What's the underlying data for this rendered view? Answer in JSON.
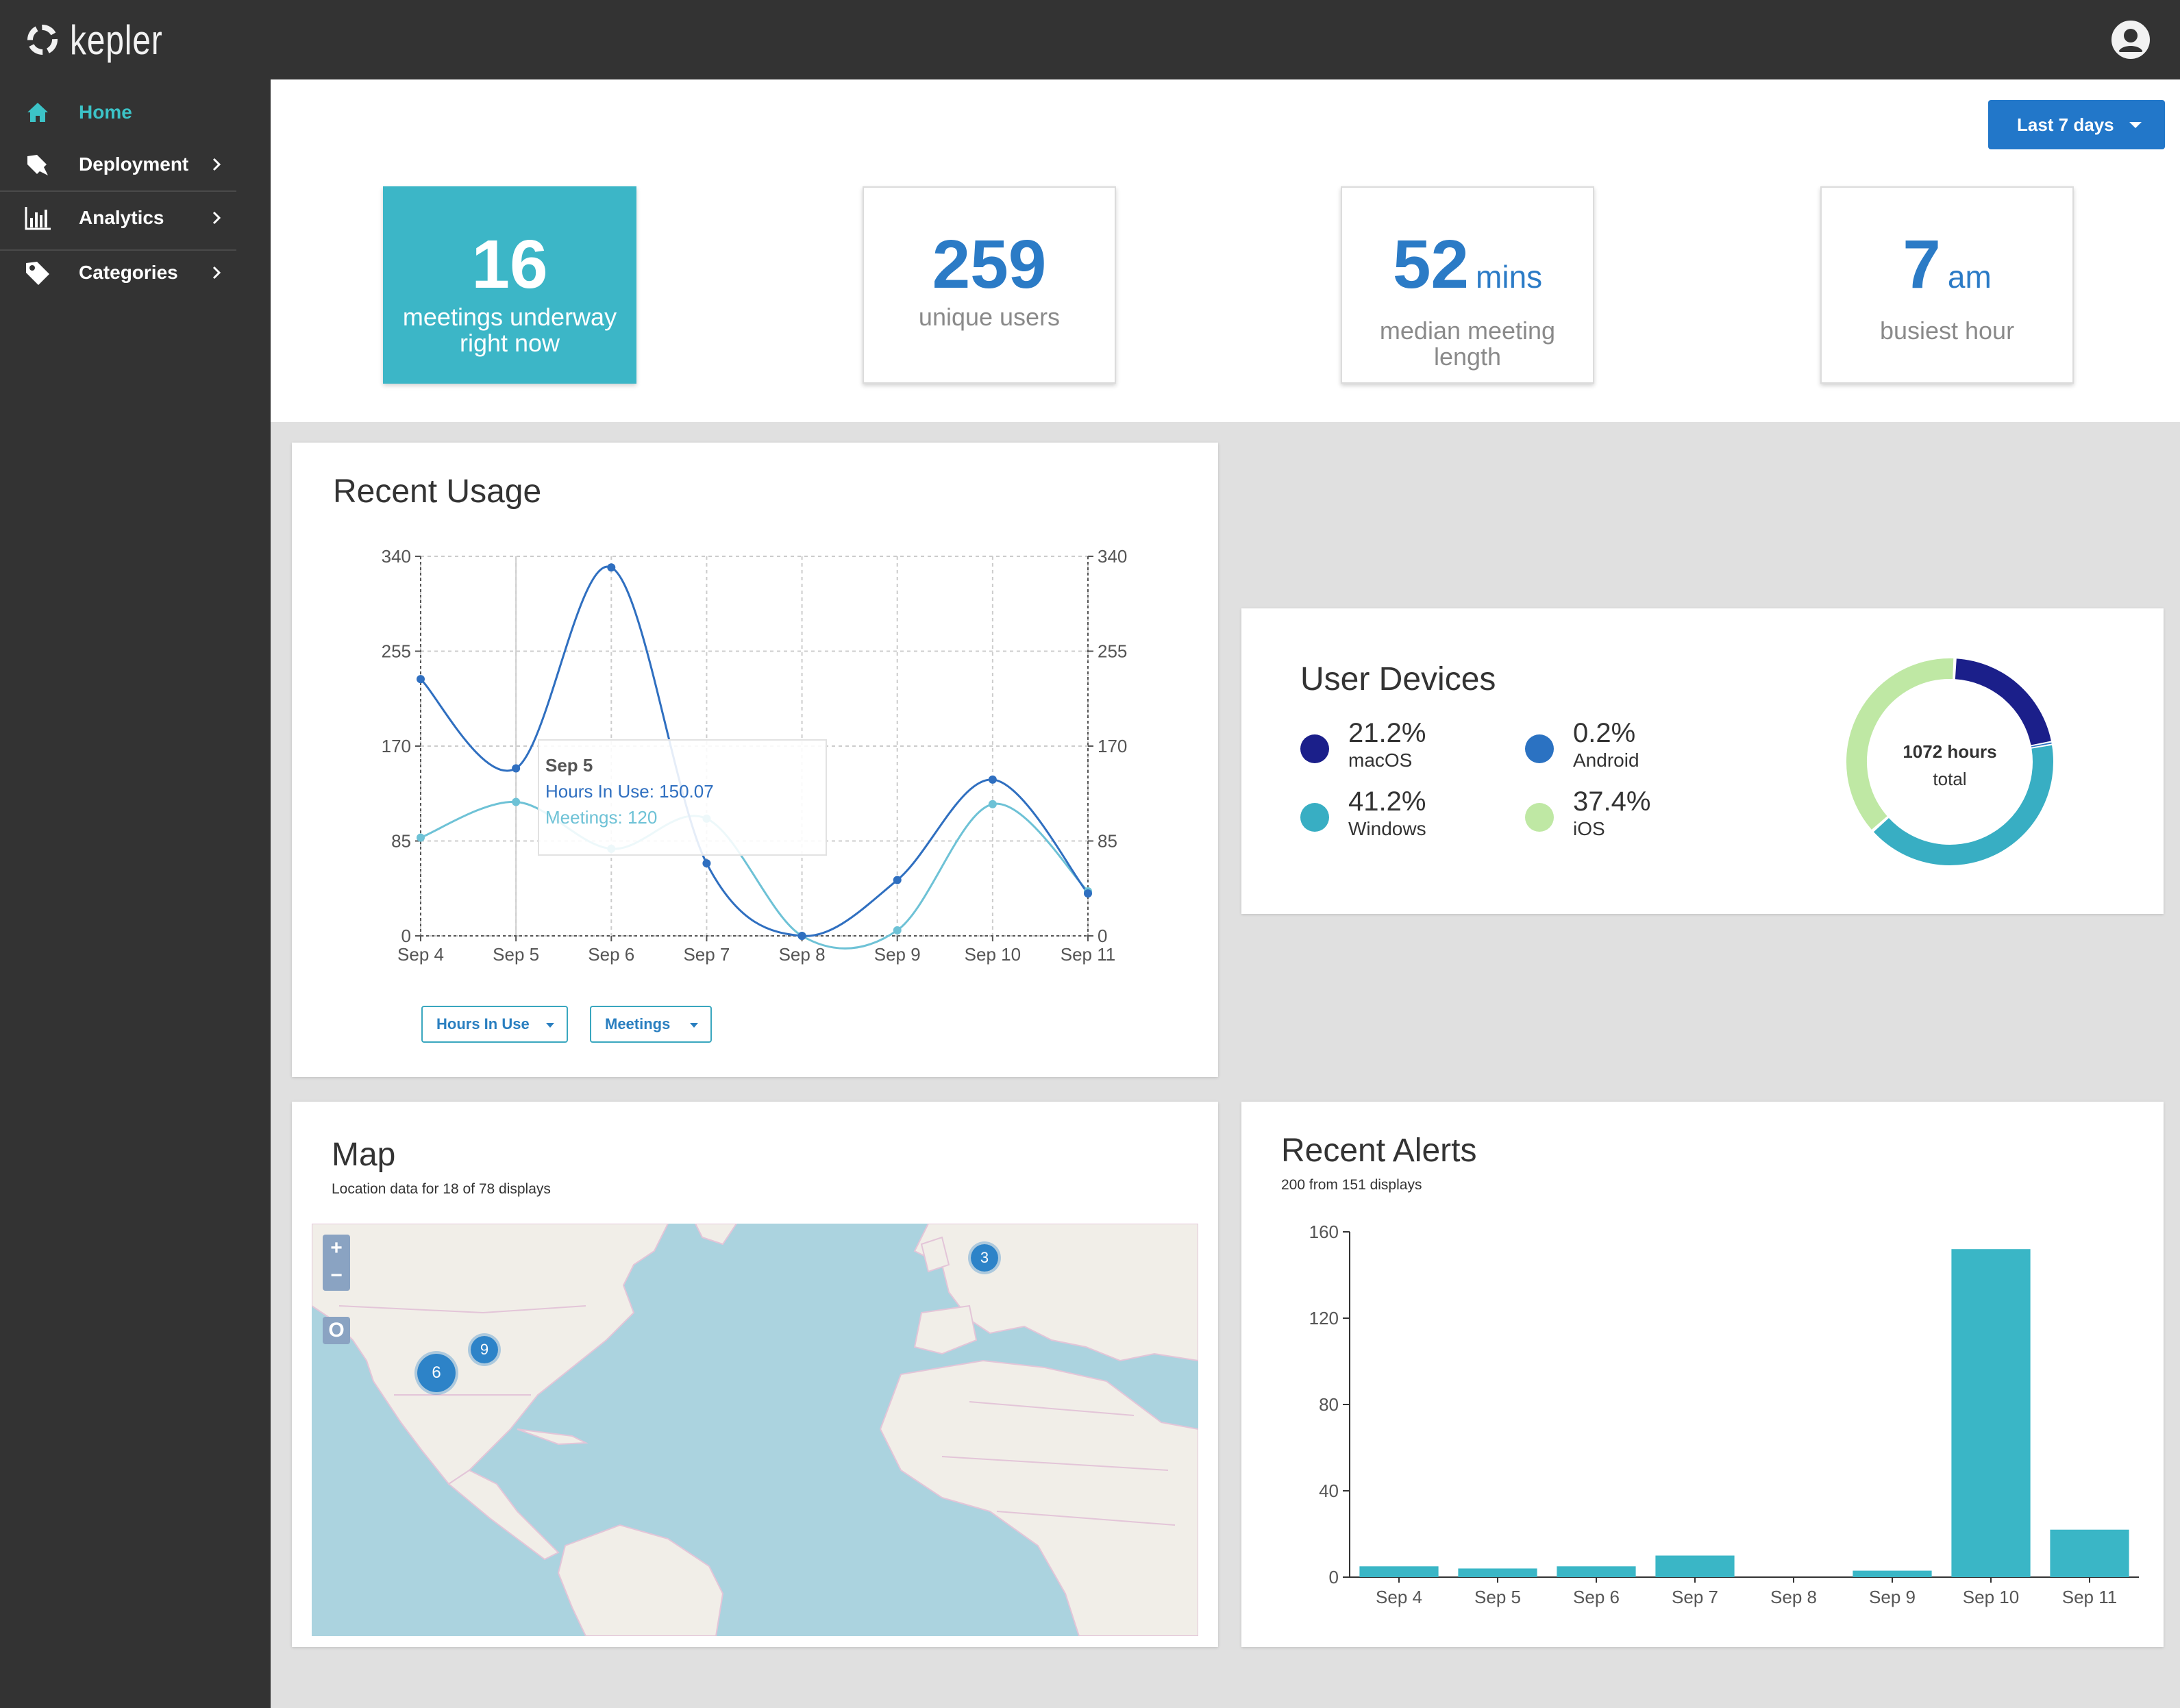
{
  "app": {
    "logo_text": "kepler"
  },
  "sidebar": {
    "items": [
      {
        "label": "Home"
      },
      {
        "label": "Deployment"
      },
      {
        "label": "Analytics"
      },
      {
        "label": "Categories"
      }
    ]
  },
  "header": {
    "range_label": "Last 7 days"
  },
  "stats": [
    {
      "value": "16",
      "unit": "",
      "label_line1": "meetings underway",
      "label_line2": "right now"
    },
    {
      "value": "259",
      "unit": "",
      "label_line1": "unique users",
      "label_line2": ""
    },
    {
      "value": "52",
      "unit": "mins",
      "label_line1": "median meeting",
      "label_line2": "length"
    },
    {
      "value": "7",
      "unit": "am",
      "label_line1": "busiest hour",
      "label_line2": ""
    }
  ],
  "usage": {
    "title": "Recent Usage",
    "tooltip": {
      "date": "Sep 5",
      "hours": "Hours In Use: 150.07",
      "meetings": "Meetings: 120"
    },
    "legend": {
      "hours_label": "Hours In Use",
      "meetings_label": "Meetings"
    }
  },
  "devices": {
    "title": "User Devices",
    "total_value": "1072 hours",
    "total_label": "total",
    "items": [
      {
        "pct": "21.2%",
        "name": "macOS",
        "color": "#1b1f8a"
      },
      {
        "pct": "0.2%",
        "name": "Android",
        "color": "#2b72c2"
      },
      {
        "pct": "41.2%",
        "name": "Windows",
        "color": "#38aec3"
      },
      {
        "pct": "37.4%",
        "name": "iOS",
        "color": "#bfe8a4"
      }
    ]
  },
  "map": {
    "title": "Map",
    "subtitle": "Location data for 18 of 78 displays",
    "zoom_in": "+",
    "zoom_out": "−",
    "reset": "O",
    "markers": [
      {
        "label": "3"
      },
      {
        "label": "9"
      },
      {
        "label": "6"
      }
    ]
  },
  "alerts": {
    "title": "Recent Alerts",
    "subtitle": "200 from 151 displays"
  },
  "chart_data": [
    {
      "type": "line",
      "title": "Recent Usage",
      "categories": [
        "Sep 4",
        "Sep 5",
        "Sep 6",
        "Sep 7",
        "Sep 8",
        "Sep 9",
        "Sep 10",
        "Sep 11"
      ],
      "series": [
        {
          "name": "Hours In Use",
          "color": "#2f6fc0",
          "values": [
            230,
            150.07,
            330,
            65,
            0,
            50,
            140,
            38
          ]
        },
        {
          "name": "Meetings",
          "color": "#6ec2d6",
          "values": [
            88,
            120,
            78,
            105,
            0,
            5,
            118,
            40
          ]
        }
      ],
      "yticks": [
        0,
        85,
        170,
        255,
        340
      ],
      "ylim": [
        0,
        340
      ],
      "y2ticks": [
        0,
        85,
        170,
        255,
        340
      ]
    },
    {
      "type": "pie",
      "title": "User Devices",
      "categories": [
        "macOS",
        "Android",
        "Windows",
        "iOS"
      ],
      "values": [
        21.2,
        0.2,
        41.2,
        37.4
      ],
      "colors": [
        "#1b1f8a",
        "#2b72c2",
        "#38aec3",
        "#bfe8a4"
      ]
    },
    {
      "type": "bar",
      "title": "Recent Alerts",
      "categories": [
        "Sep 4",
        "Sep 5",
        "Sep 6",
        "Sep 7",
        "Sep 8",
        "Sep 9",
        "Sep 10",
        "Sep 11"
      ],
      "values": [
        5,
        4,
        5,
        10,
        0,
        3,
        152,
        22
      ],
      "yticks": [
        0,
        40,
        80,
        120,
        160
      ],
      "ylim": [
        0,
        160
      ],
      "color": "#3ab6c6"
    }
  ]
}
